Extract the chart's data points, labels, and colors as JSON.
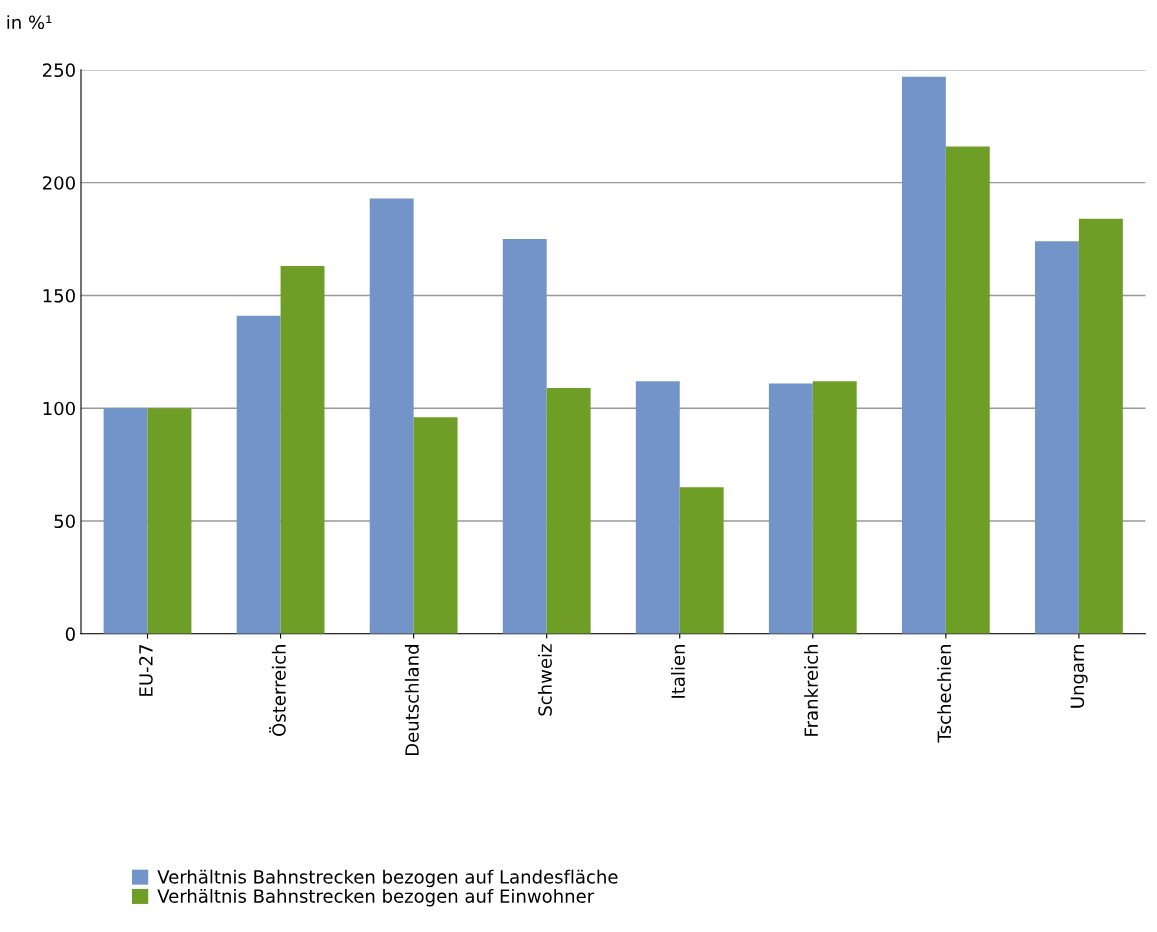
{
  "chart_data": {
    "type": "bar",
    "ylabel": "in %¹",
    "categories": [
      "EU-27",
      "Österreich",
      "Deutschland",
      "Schweiz",
      "Italien",
      "Frankreich",
      "Tschechien",
      "Ungarn"
    ],
    "series": [
      {
        "name": "Verhältnis Bahnstrecken bezogen auf Landesfläche",
        "color": "#7394c8",
        "values": [
          100,
          141,
          193,
          175,
          112,
          111,
          247,
          174
        ]
      },
      {
        "name": "Verhältnis Bahnstrecken bezogen auf Einwohner",
        "color": "#6e9e26",
        "values": [
          100,
          163,
          96,
          109,
          65,
          112,
          216,
          184
        ]
      }
    ],
    "ylim": [
      0,
      250
    ],
    "yticks": [
      0,
      50,
      100,
      150,
      200,
      250
    ],
    "grid": "y",
    "legend": "bottom left"
  }
}
